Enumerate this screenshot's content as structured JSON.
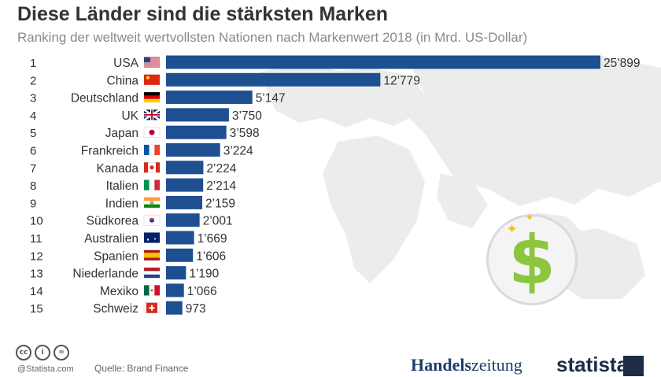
{
  "header": {
    "title": "Diese Länder sind die stärksten Marken",
    "subtitle": "Ranking der weltweit wertvollsten Nationen nach Markenwert 2018 (in Mrd. US-Dollar)"
  },
  "chart_data": {
    "type": "bar",
    "orientation": "horizontal",
    "title": "Diese Länder sind die stärksten Marken",
    "subtitle": "Ranking der weltweit wertvollsten Nationen nach Markenwert 2018 (in Mrd. US-Dollar)",
    "ranks": [
      "1",
      "2",
      "3",
      "4",
      "5",
      "6",
      "7",
      "8",
      "9",
      "10",
      "11",
      "12",
      "13",
      "14",
      "15"
    ],
    "categories": [
      "USA",
      "China",
      "Deutschland",
      "UK",
      "Japan",
      "Frankreich",
      "Kanada",
      "Italien",
      "Indien",
      "Südkorea",
      "Australien",
      "Spanien",
      "Niederlande",
      "Mexiko",
      "Schweiz"
    ],
    "flags": [
      "us",
      "cn",
      "de",
      "gb",
      "jp",
      "fr",
      "ca",
      "it",
      "in",
      "kr",
      "au",
      "es",
      "nl",
      "mx",
      "ch"
    ],
    "values": [
      25899,
      12779,
      5147,
      3750,
      3598,
      3224,
      2224,
      2214,
      2159,
      2001,
      1669,
      1606,
      1190,
      1066,
      973
    ],
    "value_labels": [
      "25’899",
      "12’779",
      "5’147",
      "3’750",
      "3’598",
      "3’224",
      "2’224",
      "2’214",
      "2’159",
      "2’001",
      "1’669",
      "1’606",
      "1’190",
      "1’066",
      "973"
    ],
    "bar_color": "#1d4f91",
    "grid": false,
    "legend": "none"
  },
  "footer": {
    "credit": "@Statista.com",
    "source": "Quelle: Brand Finance",
    "partner_bold": "Handels",
    "partner_rest": "zeitung",
    "brand": "statista",
    "license_icons": [
      "cc-icon",
      "by-icon",
      "nd-icon"
    ]
  },
  "colors": {
    "title": "#333333",
    "subtitle": "#8a8a8a",
    "accent_green": "#8cc63f",
    "map": "#ececec"
  }
}
